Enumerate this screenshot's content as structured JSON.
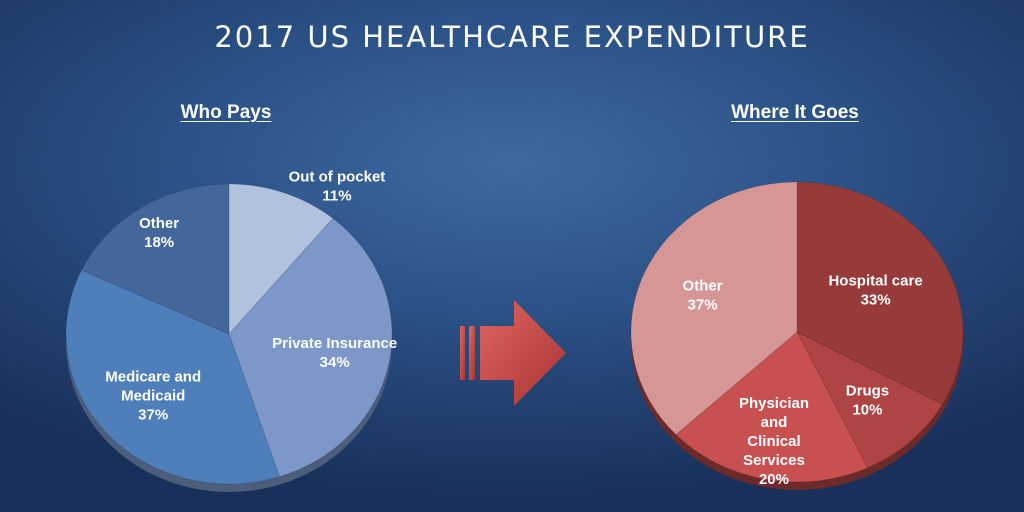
{
  "title": "2017 US HEALTHCARE EXPENDITURE",
  "colors": {
    "left_palette": [
      "#b2c1dd",
      "#7c97c8",
      "#4e7fba",
      "#43679a"
    ],
    "right_palette": [
      "#973a3a",
      "#af4444",
      "#c95050",
      "#d69696"
    ],
    "arrow": "#c84a48"
  },
  "chart_data": [
    {
      "type": "pie",
      "title": "Who Pays",
      "labels": [
        "Out of pocket",
        "Private Insurance",
        "Medicare and Medicaid",
        "Other"
      ],
      "values": [
        11,
        34,
        37,
        18
      ],
      "unit": "%"
    },
    {
      "type": "pie",
      "title": "Where It Goes",
      "labels": [
        "Hospital care",
        "Drugs",
        "Physician and Clinical Services",
        "Other"
      ],
      "values": [
        33,
        10,
        20,
        37
      ],
      "unit": "%"
    }
  ]
}
